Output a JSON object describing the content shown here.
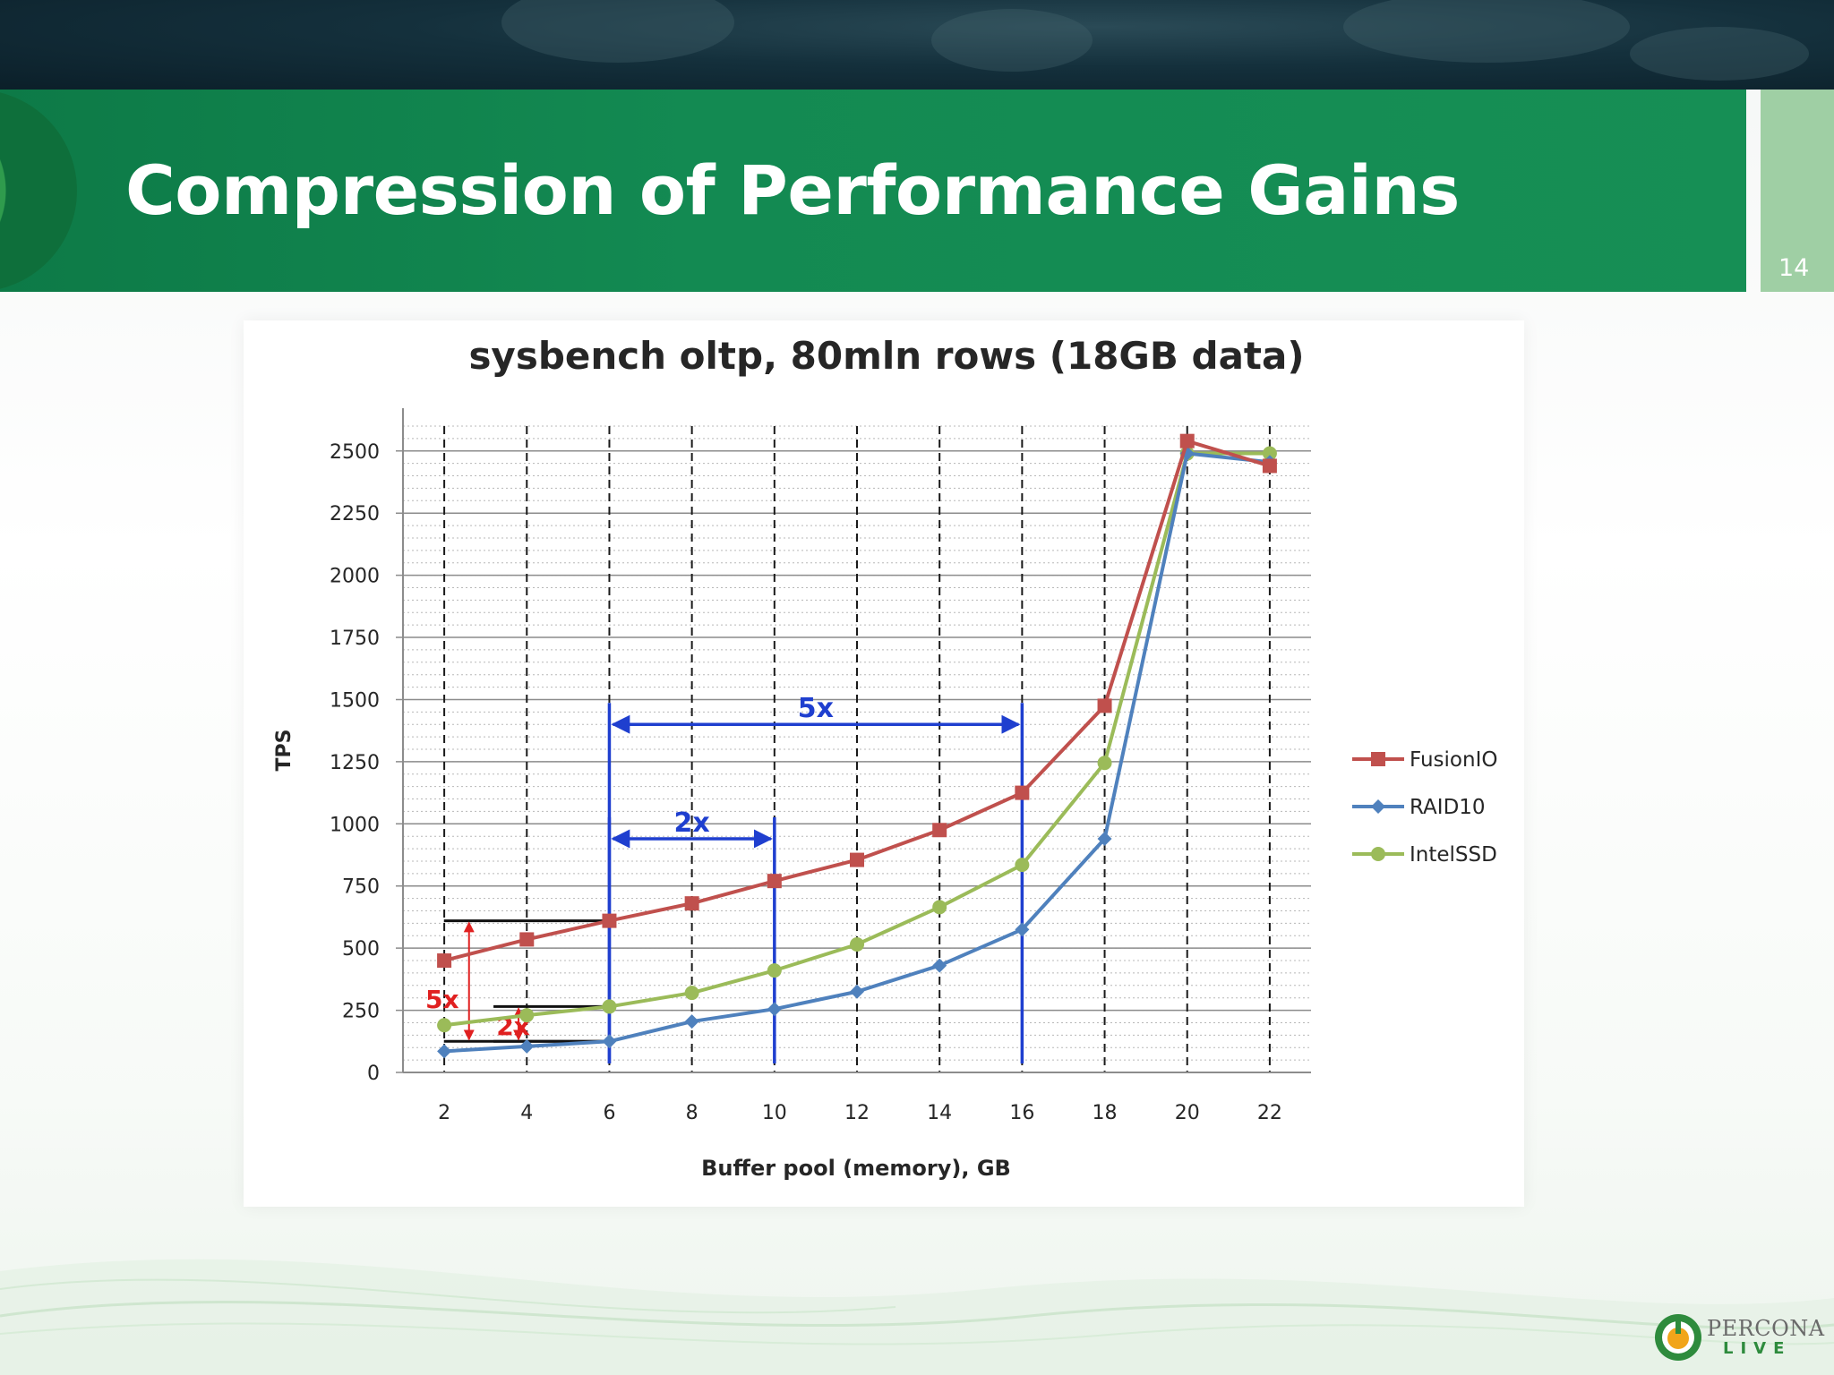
{
  "slide": {
    "title": "Compression of Performance Gains",
    "number": "14"
  },
  "branding": {
    "name": "PERCONA",
    "sub": "LIVE",
    "colors": {
      "green": "#138a52",
      "light_green": "#9fcfa4",
      "dark_band": "#14303c"
    }
  },
  "chart_data": {
    "type": "line",
    "title": "sysbench oltp, 80mln rows (18GB data)",
    "xlabel": "Buffer pool (memory), GB",
    "ylabel": "TPS",
    "x": [
      2,
      4,
      6,
      8,
      10,
      12,
      14,
      16,
      18,
      20,
      22
    ],
    "xticks": [
      "2",
      "4",
      "6",
      "8",
      "10",
      "12",
      "14",
      "16",
      "18",
      "20",
      "22"
    ],
    "xlim": [
      1,
      23
    ],
    "ylim": [
      0,
      2600
    ],
    "yticks": [
      "0",
      "250",
      "500",
      "750",
      "1000",
      "1250",
      "1500",
      "1750",
      "2000",
      "2250",
      "2500"
    ],
    "grid": true,
    "legend": "right",
    "series": [
      {
        "name": "FusionIO",
        "color": "#c0504d",
        "marker": "square",
        "values": [
          450,
          535,
          610,
          680,
          770,
          855,
          975,
          1125,
          1475,
          2540,
          2440
        ]
      },
      {
        "name": "RAID10",
        "color": "#4f81bd",
        "marker": "diamond",
        "values": [
          85,
          105,
          125,
          205,
          255,
          325,
          430,
          575,
          940,
          2490,
          2455
        ]
      },
      {
        "name": "IntelSSD",
        "color": "#9bbb59",
        "marker": "circle",
        "values": [
          190,
          230,
          265,
          320,
          410,
          515,
          665,
          835,
          1245,
          2490,
          2490
        ]
      }
    ],
    "annotations": [
      {
        "text": "5x",
        "color": "#1f3fcf",
        "kind": "span",
        "x1": 6,
        "x2": 16,
        "y": 1400
      },
      {
        "text": "2x",
        "color": "#1f3fcf",
        "kind": "span",
        "x1": 6,
        "x2": 10,
        "y": 940
      },
      {
        "text": "5x",
        "color": "#e02020",
        "kind": "vspan",
        "x": 2.6,
        "y1": 125,
        "y2": 610
      },
      {
        "text": "2x",
        "color": "#e02020",
        "kind": "vspan",
        "x": 3.8,
        "y1": 125,
        "y2": 265
      }
    ]
  }
}
